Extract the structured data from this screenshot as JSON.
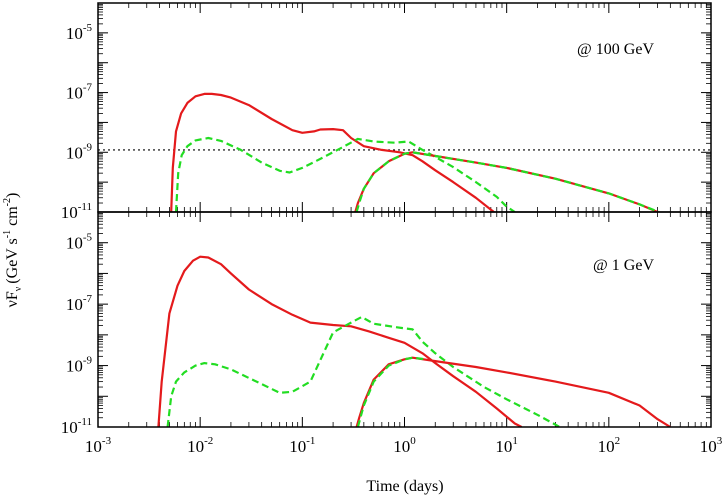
{
  "chart_data": {
    "type": "line",
    "xlabel": "Time (days)",
    "ylabel": {
      "base": "νF",
      "sub": "ν",
      "units": "(GeV s",
      "exp1": "-1",
      "mid": " cm",
      "exp2": "-2",
      "close": ")"
    },
    "xscale": "log",
    "yscale": "log",
    "xlim": [
      0.001,
      1000
    ],
    "x_ticks": [
      {
        "base": "10",
        "exp": "-3",
        "value": 0.001
      },
      {
        "base": "10",
        "exp": "-2",
        "value": 0.01
      },
      {
        "base": "10",
        "exp": "-1",
        "value": 0.1
      },
      {
        "base": "10",
        "exp": "0",
        "value": 1
      },
      {
        "base": "10",
        "exp": "1",
        "value": 10
      },
      {
        "base": "10",
        "exp": "2",
        "value": 100
      },
      {
        "base": "10",
        "exp": "3",
        "value": 1000
      }
    ],
    "panels": [
      {
        "annotation": "@ 100 GeV",
        "ylim": [
          1e-11,
          0.0001
        ],
        "y_ticks": [
          {
            "base": "10",
            "exp": "-11",
            "value": 1e-11
          },
          {
            "base": "10",
            "exp": "-9",
            "value": 1e-09
          },
          {
            "base": "10",
            "exp": "-7",
            "value": 1e-07
          },
          {
            "base": "10",
            "exp": "-5",
            "value": 1e-05
          }
        ],
        "reference_line": {
          "y": 1.2e-09,
          "style": "dotted",
          "color": "#000000"
        },
        "series": [
          {
            "color": "#e41a1c",
            "dash": "solid",
            "points": [
              [
                0.0052,
                1e-11
              ],
              [
                0.0054,
                3e-10
              ],
              [
                0.0058,
                5e-09
              ],
              [
                0.0065,
                2e-08
              ],
              [
                0.0075,
                4.5e-08
              ],
              [
                0.009,
                7.5e-08
              ],
              [
                0.011,
                9e-08
              ],
              [
                0.013,
                9e-08
              ],
              [
                0.016,
                8.3e-08
              ],
              [
                0.02,
                6.8e-08
              ],
              [
                0.03,
                3.8e-08
              ],
              [
                0.05,
                1.3e-08
              ],
              [
                0.08,
                5.5e-09
              ],
              [
                0.1,
                4.5e-09
              ],
              [
                0.13,
                5e-09
              ],
              [
                0.15,
                5.8e-09
              ],
              [
                0.2,
                6e-09
              ],
              [
                0.25,
                5.5e-09
              ],
              [
                0.3,
                3e-09
              ],
              [
                0.4,
                1.6e-09
              ],
              [
                0.6,
                1.2e-09
              ],
              [
                0.9,
                1e-09
              ],
              [
                1.2,
                8e-10
              ],
              [
                1.5,
                5e-10
              ],
              [
                2,
                2.5e-10
              ],
              [
                3,
                1e-10
              ],
              [
                5,
                3e-11
              ],
              [
                7,
                1.2e-11
              ],
              [
                7.5,
                1e-11
              ]
            ]
          },
          {
            "color": "#22dd22",
            "dash": "dashed",
            "points": [
              [
                0.0058,
                1e-11
              ],
              [
                0.0061,
                2e-10
              ],
              [
                0.0066,
                8e-10
              ],
              [
                0.0075,
                1.6e-09
              ],
              [
                0.009,
                2.5e-09
              ],
              [
                0.012,
                3e-09
              ],
              [
                0.016,
                2.4e-09
              ],
              [
                0.025,
                1.2e-09
              ],
              [
                0.04,
                4.5e-10
              ],
              [
                0.06,
                2.4e-10
              ],
              [
                0.075,
                2.1e-10
              ],
              [
                0.1,
                3e-10
              ],
              [
                0.15,
                6e-10
              ],
              [
                0.25,
                1.5e-09
              ],
              [
                0.35,
                2.8e-09
              ],
              [
                0.5,
                2.3e-09
              ],
              [
                0.8,
                2.1e-09
              ],
              [
                1.1,
                2.3e-09
              ],
              [
                1.5,
                1.2e-09
              ],
              [
                2,
                7e-10
              ],
              [
                3,
                3.2e-10
              ],
              [
                5,
                1e-10
              ],
              [
                8,
                3.2e-11
              ],
              [
                10,
                1.5e-11
              ],
              [
                12,
                1e-11
              ]
            ]
          },
          {
            "color": "#e41a1c",
            "dash": "solid",
            "points": [
              [
                0.33,
                1e-11
              ],
              [
                0.35,
                2e-11
              ],
              [
                0.4,
                6e-11
              ],
              [
                0.5,
                2e-10
              ],
              [
                0.7,
                5e-10
              ],
              [
                1,
                9e-10
              ],
              [
                1.2,
                1e-09
              ],
              [
                2,
                7.5e-10
              ],
              [
                5,
                4.5e-10
              ],
              [
                10,
                3e-10
              ],
              [
                30,
                1.3e-10
              ],
              [
                100,
                4.2e-11
              ],
              [
                200,
                1.8e-11
              ],
              [
                300,
                1e-11
              ]
            ]
          },
          {
            "color": "#22dd22",
            "dash": "dashed",
            "points": [
              [
                0.34,
                1e-11
              ],
              [
                0.36,
                2e-11
              ],
              [
                0.4,
                6e-11
              ],
              [
                0.5,
                2e-10
              ],
              [
                0.7,
                5e-10
              ],
              [
                1,
                9e-10
              ],
              [
                1.2,
                1e-09
              ],
              [
                2,
                7.5e-10
              ],
              [
                5,
                4.5e-10
              ],
              [
                10,
                3e-10
              ],
              [
                30,
                1.3e-10
              ],
              [
                100,
                4.2e-11
              ],
              [
                200,
                1.8e-11
              ],
              [
                310,
                1e-11
              ]
            ]
          }
        ]
      },
      {
        "annotation": "@ 1 GeV",
        "ylim": [
          1e-11,
          0.0001
        ],
        "y_ticks": [
          {
            "base": "10",
            "exp": "-11",
            "value": 1e-11
          },
          {
            "base": "10",
            "exp": "-9",
            "value": 1e-09
          },
          {
            "base": "10",
            "exp": "-7",
            "value": 1e-07
          },
          {
            "base": "10",
            "exp": "-5",
            "value": 1e-05
          }
        ],
        "series": [
          {
            "color": "#e41a1c",
            "dash": "solid",
            "points": [
              [
                0.0039,
                1e-11
              ],
              [
                0.0042,
                3e-10
              ],
              [
                0.005,
                5e-08
              ],
              [
                0.006,
                4e-07
              ],
              [
                0.007,
                1.2e-06
              ],
              [
                0.0085,
                2.6e-06
              ],
              [
                0.01,
                3.5e-06
              ],
              [
                0.012,
                3.3e-06
              ],
              [
                0.016,
                2e-06
              ],
              [
                0.02,
                1e-06
              ],
              [
                0.03,
                3e-07
              ],
              [
                0.05,
                1e-07
              ],
              [
                0.08,
                4.5e-08
              ],
              [
                0.12,
                2.5e-08
              ],
              [
                0.2,
                2.1e-08
              ],
              [
                0.3,
                1.9e-08
              ],
              [
                0.45,
                1.3e-08
              ],
              [
                0.7,
                8e-09
              ],
              [
                1,
                5.5e-09
              ],
              [
                1.5,
                2.5e-09
              ],
              [
                2,
                1.2e-09
              ],
              [
                3,
                4.5e-10
              ],
              [
                5,
                1.4e-10
              ],
              [
                8,
                4e-11
              ],
              [
                12,
                1.3e-11
              ],
              [
                14,
                1e-11
              ]
            ]
          },
          {
            "color": "#22dd22",
            "dash": "dashed",
            "points": [
              [
                0.0048,
                1e-11
              ],
              [
                0.0052,
                1e-10
              ],
              [
                0.0058,
                3e-10
              ],
              [
                0.007,
                6e-10
              ],
              [
                0.009,
                1e-09
              ],
              [
                0.011,
                1.2e-09
              ],
              [
                0.014,
                1.1e-09
              ],
              [
                0.02,
                7.5e-10
              ],
              [
                0.04,
                2.5e-10
              ],
              [
                0.06,
                1.3e-10
              ],
              [
                0.08,
                1.4e-10
              ],
              [
                0.12,
                3e-10
              ],
              [
                0.2,
                1.2e-08
              ],
              [
                0.3,
                2.5e-08
              ],
              [
                0.38,
                3.8e-08
              ],
              [
                0.5,
                2.3e-08
              ],
              [
                0.8,
                1.8e-08
              ],
              [
                1.2,
                1.5e-08
              ],
              [
                1.5,
                6e-09
              ],
              [
                2,
                2.5e-09
              ],
              [
                3,
                9e-10
              ],
              [
                6,
                2e-10
              ],
              [
                10,
                8e-11
              ],
              [
                20,
                2.5e-11
              ],
              [
                30,
                1.2e-11
              ],
              [
                33,
                1e-11
              ]
            ]
          },
          {
            "color": "#e41a1c",
            "dash": "solid",
            "points": [
              [
                0.34,
                1e-11
              ],
              [
                0.36,
                2e-11
              ],
              [
                0.4,
                6e-11
              ],
              [
                0.5,
                3.5e-10
              ],
              [
                0.7,
                1.1e-09
              ],
              [
                1,
                1.6e-09
              ],
              [
                1.2,
                1.8e-09
              ],
              [
                2,
                1.4e-09
              ],
              [
                5,
                9e-10
              ],
              [
                10,
                6e-10
              ],
              [
                30,
                3e-10
              ],
              [
                100,
                1.3e-10
              ],
              [
                200,
                5e-11
              ],
              [
                300,
                1.8e-11
              ],
              [
                400,
                1e-11
              ]
            ]
          },
          {
            "color": "#22dd22",
            "dash": "dashed",
            "points": [
              [
                0.35,
                1e-11
              ],
              [
                0.37,
                2e-11
              ],
              [
                0.4,
                5e-11
              ],
              [
                0.5,
                3e-10
              ],
              [
                0.7,
                1e-09
              ],
              [
                1,
                1.6e-09
              ],
              [
                1.2,
                1.8e-09
              ],
              [
                1.6,
                1.6e-09
              ]
            ]
          }
        ]
      }
    ]
  }
}
